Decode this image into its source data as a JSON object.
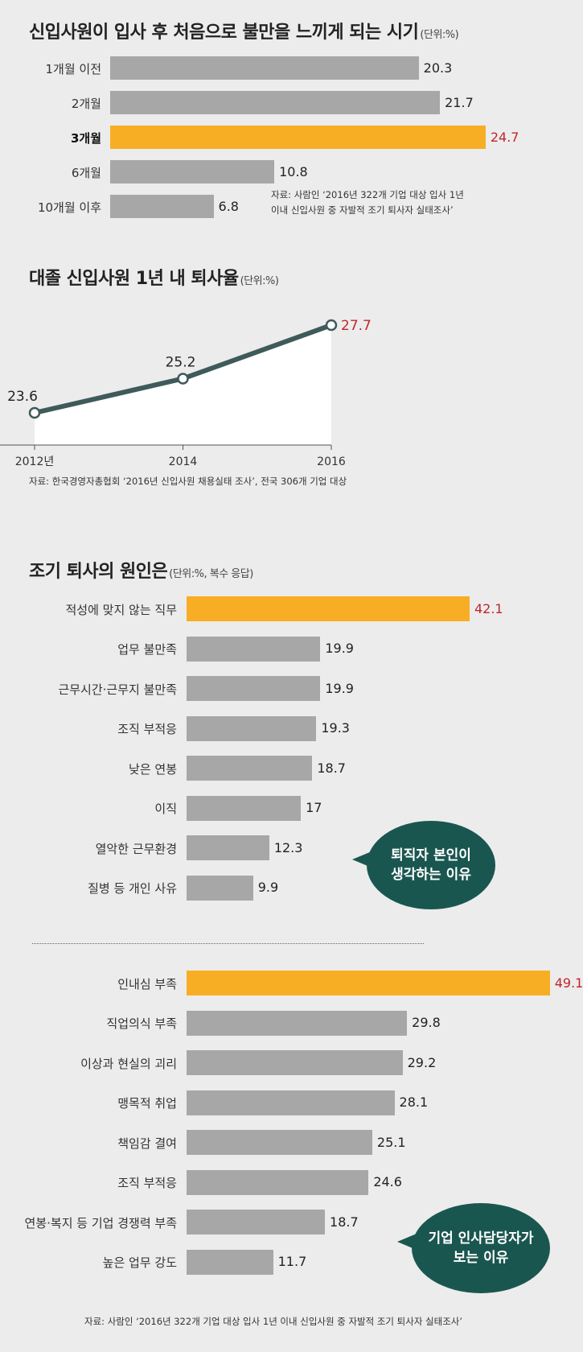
{
  "section1": {
    "title": "신입사원이 입사 후 처음으로 불만을 느끼게 되는 시기",
    "unit": "(단위:%)",
    "source_line1": "자료: 사람인 ‘2016년 322개 기업 대상 입사 1년",
    "source_line2": "이내 신입사원 중 자발적 조기 퇴사자 실태조사’"
  },
  "section2": {
    "title": "대졸 신입사원 1년 내 퇴사율",
    "unit": "(단위:%)",
    "source": "자료: 한국경영자총협회 ‘2016년 신입사원 채용실태 조사’, 전국 306개 기업 대상"
  },
  "section3": {
    "title": "조기 퇴사의 원인은",
    "unit": "(단위:%, 복수 응답)",
    "bubble_employee_line1": "퇴직자 본인이",
    "bubble_employee_line2": "생각하는 이유",
    "bubble_hr_line1": "기업 인사담당자가",
    "bubble_hr_line2": "보는 이유",
    "source": "자료: 사람인 ‘2016년 322개 기업 대상 입사 1년 이내 신입사원 중 자발적 조기 퇴사자 실태조사’"
  },
  "colors": {
    "bar": "#a7a7a7",
    "highlight": "#f7ae24",
    "highlight_text": "#c0262b",
    "line": "#3f5a5a",
    "bubble": "#1a5650"
  },
  "chart_data": [
    {
      "type": "bar",
      "orientation": "horizontal",
      "title": "신입사원이 입사 후 처음으로 불만을 느끼게 되는 시기",
      "unit": "%",
      "categories": [
        "1개월 이전",
        "2개월",
        "3개월",
        "6개월",
        "10개월 이후"
      ],
      "values": [
        20.3,
        21.7,
        24.7,
        10.8,
        6.8
      ],
      "value_labels": [
        "20.3",
        "21.7",
        "24.7",
        "10.8",
        "6.8"
      ],
      "highlight_index": 2
    },
    {
      "type": "line",
      "title": "대졸 신입사원 1년 내 퇴사율",
      "unit": "%",
      "x": [
        2012,
        2014,
        2016
      ],
      "x_tick_labels": [
        "2012년",
        "2014",
        "2016"
      ],
      "values": [
        23.6,
        25.2,
        27.7
      ],
      "value_labels": [
        "23.6",
        "25.2",
        "27.7"
      ]
    },
    {
      "type": "bar",
      "orientation": "horizontal",
      "title": "조기 퇴사의 원인은",
      "group": "퇴직자 본인이 생각하는 이유",
      "unit": "%",
      "categories": [
        "적성에 맞지 않는 직무",
        "업무 불만족",
        "근무시간·근무지 불만족",
        "조직 부적응",
        "낮은 연봉",
        "이직",
        "열악한 근무환경",
        "질병 등 개인 사유"
      ],
      "values": [
        42.1,
        19.9,
        19.9,
        19.3,
        18.7,
        17,
        12.3,
        9.9
      ],
      "value_labels": [
        "42.1",
        "19.9",
        "19.9",
        "19.3",
        "18.7",
        "17",
        "12.3",
        "9.9"
      ],
      "highlight_index": 0
    },
    {
      "type": "bar",
      "orientation": "horizontal",
      "title": "조기 퇴사의 원인은",
      "group": "기업 인사담당자가 보는 이유",
      "unit": "%",
      "categories": [
        "인내심 부족",
        "직업의식 부족",
        "이상과 현실의 괴리",
        "맹목적 취업",
        "책임감 결여",
        "조직 부적응",
        "연봉·복지 등 기업 경쟁력 부족",
        "높은 업무 강도"
      ],
      "values": [
        49.1,
        29.8,
        29.2,
        28.1,
        25.1,
        24.6,
        18.7,
        11.7
      ],
      "value_labels": [
        "49.1",
        "29.8",
        "29.2",
        "28.1",
        "25.1",
        "24.6",
        "18.7",
        "11.7"
      ],
      "highlight_index": 0
    }
  ]
}
